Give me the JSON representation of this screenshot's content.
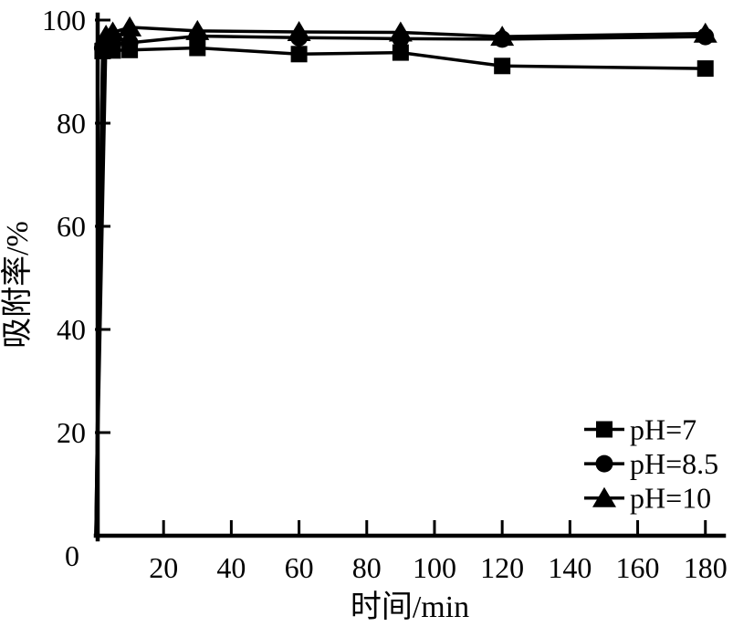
{
  "figure": {
    "background": "#ffffff",
    "ink": "#000000"
  },
  "chart_data": {
    "type": "line",
    "title": "",
    "xlabel": "时间/min",
    "ylabel": "吸附率/%",
    "xlim": [
      0,
      185.5
    ],
    "ylim": [
      0,
      100
    ],
    "xticks": [
      20,
      40,
      60,
      80,
      100,
      120,
      140,
      160,
      180
    ],
    "yticks": [
      0,
      20,
      40,
      60,
      80,
      100
    ],
    "grid": false,
    "legend": {
      "position": "lower-right",
      "entries": [
        "pH=7",
        "pH=8.5",
        "pH=10"
      ]
    },
    "hide_marker_at_first_point": true,
    "series": [
      {
        "name": "pH=7",
        "marker": "square",
        "color": "#000000",
        "x": [
          0,
          2,
          5,
          10,
          30,
          60,
          90,
          120,
          180
        ],
        "values": [
          0,
          94.0,
          94.1,
          94.2,
          94.6,
          93.4,
          93.7,
          91.1,
          90.6
        ]
      },
      {
        "name": "pH=8.5",
        "marker": "circle",
        "color": "#000000",
        "x": [
          0,
          2,
          5,
          10,
          30,
          60,
          90,
          120,
          180
        ],
        "values": [
          0,
          94.6,
          95.3,
          95.6,
          96.9,
          96.6,
          96.4,
          96.3,
          96.8
        ]
      },
      {
        "name": "pH=10",
        "marker": "triangle",
        "color": "#000000",
        "x": [
          0,
          3,
          5,
          10,
          30,
          60,
          90,
          120,
          180
        ],
        "values": [
          0,
          97.0,
          97.6,
          98.6,
          97.9,
          97.7,
          97.6,
          96.8,
          97.4
        ]
      }
    ]
  }
}
